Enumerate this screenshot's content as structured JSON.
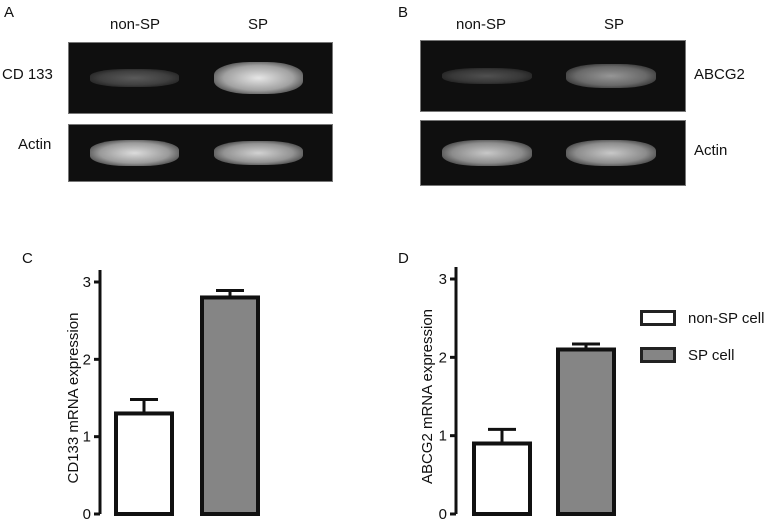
{
  "panels": {
    "A": {
      "letter": "A",
      "lanes": [
        "non-SP",
        "SP"
      ],
      "rows": [
        {
          "label": "CD 133",
          "band_intensity": [
            0.25,
            0.95
          ]
        },
        {
          "label": "Actin",
          "band_intensity": [
            0.9,
            0.85
          ]
        }
      ]
    },
    "B": {
      "letter": "B",
      "lanes": [
        "non-SP",
        "SP"
      ],
      "rows": [
        {
          "label": "ABCG2",
          "band_intensity": [
            0.2,
            0.55
          ]
        },
        {
          "label": "Actin",
          "band_intensity": [
            0.8,
            0.8
          ]
        }
      ]
    },
    "C": {
      "letter": "C"
    },
    "D": {
      "letter": "D"
    }
  },
  "legend": {
    "items": [
      {
        "label": "non-SP cell",
        "color": "#ffffff"
      },
      {
        "label": "SP cell",
        "color": "#858585"
      }
    ]
  },
  "chart_data": [
    {
      "type": "bar",
      "panel": "C",
      "categories": [
        "non-SP cell",
        "SP cell"
      ],
      "values": [
        1.3,
        2.8
      ],
      "errors": [
        0.18,
        0.09
      ],
      "ylabel": "CD133 mRNA expression",
      "ylim": [
        0,
        3
      ],
      "yticks": [
        "0",
        "1",
        "2",
        "3"
      ],
      "colors": [
        "#ffffff",
        "#858585"
      ]
    },
    {
      "type": "bar",
      "panel": "D",
      "categories": [
        "non-SP cell",
        "SP cell"
      ],
      "values": [
        0.9,
        2.1
      ],
      "errors": [
        0.18,
        0.07
      ],
      "ylabel": "ABCG2 mRNA expression",
      "ylim": [
        0,
        3
      ],
      "yticks": [
        "0",
        "1",
        "2",
        "3"
      ],
      "colors": [
        "#ffffff",
        "#858585"
      ]
    }
  ]
}
